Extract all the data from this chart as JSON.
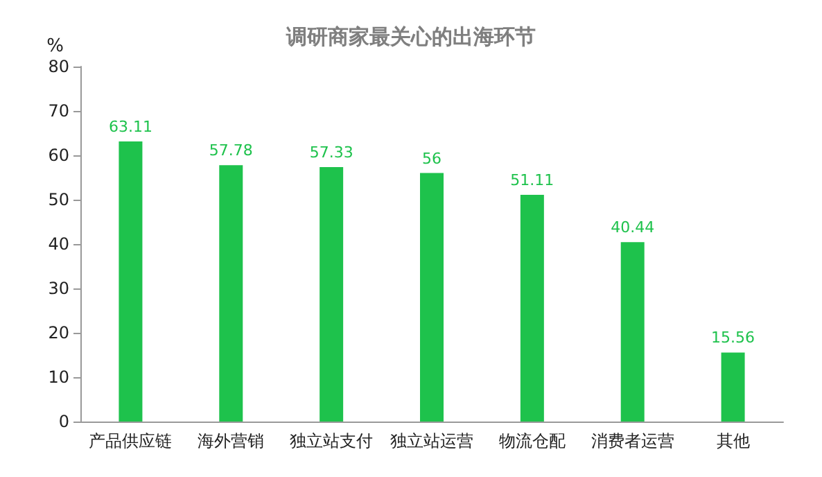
{
  "chart_data": {
    "type": "bar",
    "title": "调研商家最关心的出海环节",
    "ylabel": "%",
    "categories": [
      "产品供应链",
      "海外营销",
      "独立站支付",
      "独立站运营",
      "物流仓配",
      "消费者运营",
      "其他"
    ],
    "values": [
      63.11,
      57.78,
      57.33,
      56,
      51.11,
      40.44,
      15.56
    ],
    "color": "#1ec24c",
    "ylim": [
      0,
      80
    ],
    "yticks": [
      0,
      10,
      20,
      30,
      40,
      50,
      60,
      70,
      80
    ],
    "grid": false,
    "data_labels": true
  }
}
